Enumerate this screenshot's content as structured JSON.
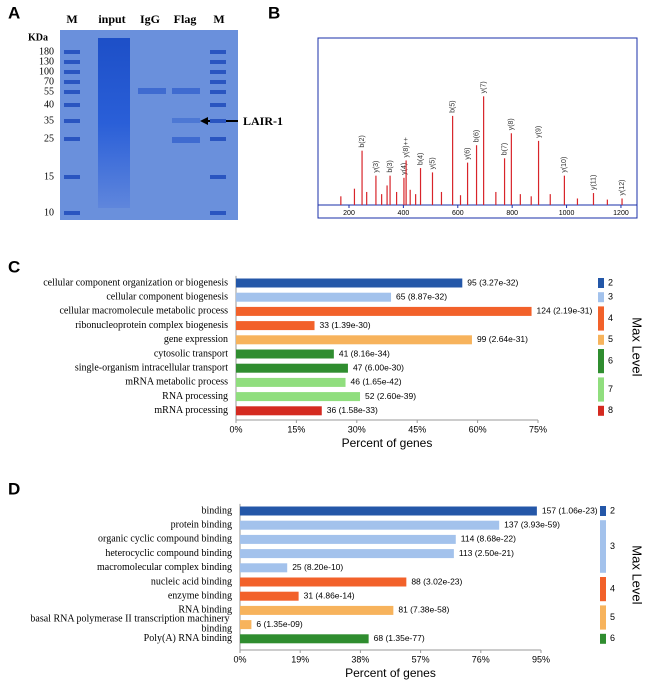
{
  "panel_labels": [
    "A",
    "B",
    "C",
    "D"
  ],
  "gel": {
    "lanes": [
      "M",
      "input",
      "IgG",
      "Flag",
      "M"
    ],
    "unit": "KDa",
    "markers": [
      "180",
      "130",
      "100",
      "70",
      "55",
      "40",
      "35",
      "25",
      "15",
      "10"
    ],
    "arrow_label": "LAIR-1"
  },
  "chart_data": [
    {
      "type": "spectrum",
      "color": "#d8242a",
      "x": [
        170,
        220,
        248,
        265,
        299,
        320,
        340,
        351,
        375,
        402,
        410,
        425,
        445,
        463,
        507,
        540,
        581,
        610,
        636,
        669,
        695,
        740,
        772,
        797,
        830,
        870,
        897,
        940,
        992,
        1040,
        1099,
        1150,
        1204
      ],
      "values": [
        8,
        15,
        50,
        12,
        27,
        10,
        18,
        27,
        12,
        25,
        41,
        14,
        10,
        34,
        30,
        12,
        82,
        9,
        39,
        55,
        100,
        12,
        43,
        66,
        10,
        8,
        59,
        10,
        27,
        6,
        11,
        5,
        6
      ],
      "labels": [
        null,
        null,
        "b(2)",
        null,
        "y(3)",
        null,
        null,
        "b(3)",
        null,
        "y(4)",
        "y(8)++",
        null,
        null,
        "b(4)",
        "y(5)",
        null,
        "b(5)",
        null,
        "y(6)",
        "b(6)",
        "y(7)",
        null,
        "b(7)",
        "y(8)",
        null,
        null,
        "y(9)",
        null,
        "y(10)",
        null,
        "y(11)",
        null,
        "y(12)"
      ],
      "xlim": [
        86,
        1259
      ],
      "ylim": [
        0,
        150
      ],
      "xticks": [
        200,
        400,
        600,
        800,
        1000,
        1200
      ]
    },
    {
      "type": "barh",
      "categories": [
        "cellular component organization or biogenesis",
        "cellular component biogenesis",
        "cellular macromolecule metabolic process",
        "ribonucleoprotein complex biogenesis",
        "gene expression",
        "cytosolic transport",
        "single-organism intracellular transport",
        "mRNA metabolic process",
        "RNA processing",
        "mRNA processing"
      ],
      "values": [
        56.2,
        38.5,
        73.4,
        19.5,
        58.6,
        24.3,
        27.8,
        27.2,
        30.8,
        21.3
      ],
      "bar_labels": [
        "95 (3.27e-32)",
        "65 (8.87e-32)",
        "124 (2.19e-31)",
        "33 (1.39e-30)",
        "99 (2.64e-31)",
        "41 (8.16e-34)",
        "47 (6.00e-30)",
        "46 (1.65e-42)",
        "52 (2.60e-39)",
        "36 (1.58e-33)"
      ],
      "colors": [
        "#2457a8",
        "#a3c2ec",
        "#f2612a",
        "#f2612a",
        "#f7b35c",
        "#2f8d2f",
        "#2f8d2f",
        "#90de7e",
        "#90de7e",
        "#d42a20"
      ],
      "xlim": [
        0,
        75
      ],
      "xticks": [
        {
          "value": 0,
          "label": "0%"
        },
        {
          "value": 15,
          "label": "15%"
        },
        {
          "value": 30,
          "label": "30%"
        },
        {
          "value": 45,
          "label": "45%"
        },
        {
          "value": 60,
          "label": "60%"
        },
        {
          "value": 75,
          "label": "75%"
        }
      ],
      "xlabel": "Percent of genes",
      "legend_title": "Max Level",
      "legend": [
        {
          "name": "2",
          "color": "#2457a8"
        },
        {
          "name": "3",
          "color": "#a3c2ec"
        },
        {
          "name": "4",
          "color": "#f2612a"
        },
        {
          "name": "5",
          "color": "#f7b35c"
        },
        {
          "name": "6",
          "color": "#2f8d2f"
        },
        {
          "name": "7",
          "color": "#90de7e"
        },
        {
          "name": "8",
          "color": "#d42a20"
        }
      ]
    },
    {
      "type": "barh",
      "categories": [
        "binding",
        "protein binding",
        "organic cyclic compound binding",
        "heterocyclic compound binding",
        "macromolecular complex binding",
        "nucleic acid binding",
        "enzyme binding",
        "RNA binding",
        "basal RNA polymerase II transcription machinery binding",
        "Poly(A) RNA binding"
      ],
      "values": [
        93.7,
        81.8,
        68.1,
        67.5,
        14.9,
        52.5,
        18.5,
        48.4,
        3.6,
        40.6
      ],
      "bar_labels": [
        "157 (1.06e-23)",
        "137 (3.93e-59)",
        "114 (8.68e-22)",
        "113 (2.50e-21)",
        "25 (8.20e-10)",
        "88 (3.02e-23)",
        "31 (4.86e-14)",
        "81 (7.38e-58)",
        "6 (1.35e-09)",
        "68 (1.35e-77)"
      ],
      "colors": [
        "#2457a8",
        "#a3c2ec",
        "#a3c2ec",
        "#a3c2ec",
        "#a3c2ec",
        "#f2612a",
        "#f2612a",
        "#f7b35c",
        "#f7b35c",
        "#2f8d2f"
      ],
      "xlim": [
        0,
        95
      ],
      "xticks": [
        {
          "value": 0,
          "label": "0%"
        },
        {
          "value": 19,
          "label": "19%"
        },
        {
          "value": 38,
          "label": "38%"
        },
        {
          "value": 57,
          "label": "57%"
        },
        {
          "value": 76,
          "label": "76%"
        },
        {
          "value": 95,
          "label": "95%"
        }
      ],
      "xlabel": "Percent of genes",
      "legend_title": "Max Level",
      "legend": [
        {
          "name": "2",
          "color": "#2457a8"
        },
        {
          "name": "3",
          "color": "#a3c2ec"
        },
        {
          "name": "4",
          "color": "#f2612a"
        },
        {
          "name": "5",
          "color": "#f7b35c"
        },
        {
          "name": "6",
          "color": "#2f8d2f"
        }
      ]
    }
  ]
}
